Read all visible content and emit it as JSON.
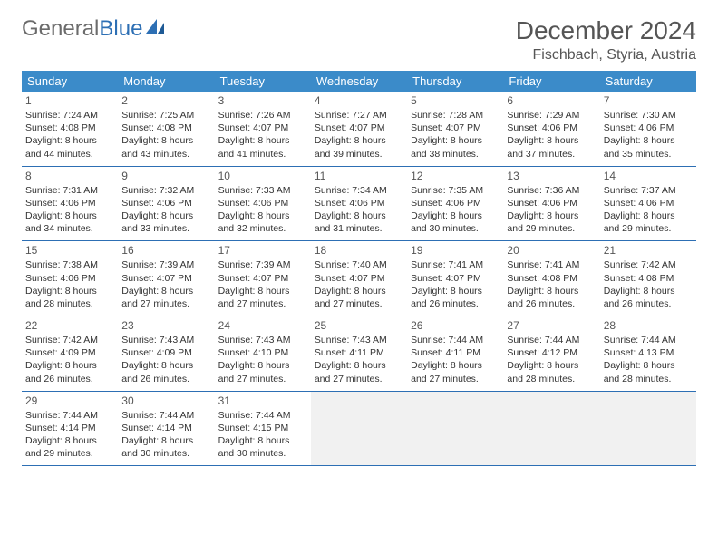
{
  "colors": {
    "header_bg": "#3b8bc9",
    "header_text": "#ffffff",
    "row_divider": "#2d6fb4",
    "logo_gray": "#6b6b6b",
    "logo_blue": "#2d6fb4",
    "title_color": "#555555",
    "body_text": "#333333",
    "empty_cell_bg": "#f1f1f1",
    "page_bg": "#ffffff"
  },
  "logo": {
    "part1": "General",
    "part2": "Blue"
  },
  "title": "December 2024",
  "location": "Fischbach, Styria, Austria",
  "weekdays": [
    "Sunday",
    "Monday",
    "Tuesday",
    "Wednesday",
    "Thursday",
    "Friday",
    "Saturday"
  ],
  "weeks": [
    [
      {
        "n": "1",
        "sr": "Sunrise: 7:24 AM",
        "ss": "Sunset: 4:08 PM",
        "d1": "Daylight: 8 hours",
        "d2": "and 44 minutes."
      },
      {
        "n": "2",
        "sr": "Sunrise: 7:25 AM",
        "ss": "Sunset: 4:08 PM",
        "d1": "Daylight: 8 hours",
        "d2": "and 43 minutes."
      },
      {
        "n": "3",
        "sr": "Sunrise: 7:26 AM",
        "ss": "Sunset: 4:07 PM",
        "d1": "Daylight: 8 hours",
        "d2": "and 41 minutes."
      },
      {
        "n": "4",
        "sr": "Sunrise: 7:27 AM",
        "ss": "Sunset: 4:07 PM",
        "d1": "Daylight: 8 hours",
        "d2": "and 39 minutes."
      },
      {
        "n": "5",
        "sr": "Sunrise: 7:28 AM",
        "ss": "Sunset: 4:07 PM",
        "d1": "Daylight: 8 hours",
        "d2": "and 38 minutes."
      },
      {
        "n": "6",
        "sr": "Sunrise: 7:29 AM",
        "ss": "Sunset: 4:06 PM",
        "d1": "Daylight: 8 hours",
        "d2": "and 37 minutes."
      },
      {
        "n": "7",
        "sr": "Sunrise: 7:30 AM",
        "ss": "Sunset: 4:06 PM",
        "d1": "Daylight: 8 hours",
        "d2": "and 35 minutes."
      }
    ],
    [
      {
        "n": "8",
        "sr": "Sunrise: 7:31 AM",
        "ss": "Sunset: 4:06 PM",
        "d1": "Daylight: 8 hours",
        "d2": "and 34 minutes."
      },
      {
        "n": "9",
        "sr": "Sunrise: 7:32 AM",
        "ss": "Sunset: 4:06 PM",
        "d1": "Daylight: 8 hours",
        "d2": "and 33 minutes."
      },
      {
        "n": "10",
        "sr": "Sunrise: 7:33 AM",
        "ss": "Sunset: 4:06 PM",
        "d1": "Daylight: 8 hours",
        "d2": "and 32 minutes."
      },
      {
        "n": "11",
        "sr": "Sunrise: 7:34 AM",
        "ss": "Sunset: 4:06 PM",
        "d1": "Daylight: 8 hours",
        "d2": "and 31 minutes."
      },
      {
        "n": "12",
        "sr": "Sunrise: 7:35 AM",
        "ss": "Sunset: 4:06 PM",
        "d1": "Daylight: 8 hours",
        "d2": "and 30 minutes."
      },
      {
        "n": "13",
        "sr": "Sunrise: 7:36 AM",
        "ss": "Sunset: 4:06 PM",
        "d1": "Daylight: 8 hours",
        "d2": "and 29 minutes."
      },
      {
        "n": "14",
        "sr": "Sunrise: 7:37 AM",
        "ss": "Sunset: 4:06 PM",
        "d1": "Daylight: 8 hours",
        "d2": "and 29 minutes."
      }
    ],
    [
      {
        "n": "15",
        "sr": "Sunrise: 7:38 AM",
        "ss": "Sunset: 4:06 PM",
        "d1": "Daylight: 8 hours",
        "d2": "and 28 minutes."
      },
      {
        "n": "16",
        "sr": "Sunrise: 7:39 AM",
        "ss": "Sunset: 4:07 PM",
        "d1": "Daylight: 8 hours",
        "d2": "and 27 minutes."
      },
      {
        "n": "17",
        "sr": "Sunrise: 7:39 AM",
        "ss": "Sunset: 4:07 PM",
        "d1": "Daylight: 8 hours",
        "d2": "and 27 minutes."
      },
      {
        "n": "18",
        "sr": "Sunrise: 7:40 AM",
        "ss": "Sunset: 4:07 PM",
        "d1": "Daylight: 8 hours",
        "d2": "and 27 minutes."
      },
      {
        "n": "19",
        "sr": "Sunrise: 7:41 AM",
        "ss": "Sunset: 4:07 PM",
        "d1": "Daylight: 8 hours",
        "d2": "and 26 minutes."
      },
      {
        "n": "20",
        "sr": "Sunrise: 7:41 AM",
        "ss": "Sunset: 4:08 PM",
        "d1": "Daylight: 8 hours",
        "d2": "and 26 minutes."
      },
      {
        "n": "21",
        "sr": "Sunrise: 7:42 AM",
        "ss": "Sunset: 4:08 PM",
        "d1": "Daylight: 8 hours",
        "d2": "and 26 minutes."
      }
    ],
    [
      {
        "n": "22",
        "sr": "Sunrise: 7:42 AM",
        "ss": "Sunset: 4:09 PM",
        "d1": "Daylight: 8 hours",
        "d2": "and 26 minutes."
      },
      {
        "n": "23",
        "sr": "Sunrise: 7:43 AM",
        "ss": "Sunset: 4:09 PM",
        "d1": "Daylight: 8 hours",
        "d2": "and 26 minutes."
      },
      {
        "n": "24",
        "sr": "Sunrise: 7:43 AM",
        "ss": "Sunset: 4:10 PM",
        "d1": "Daylight: 8 hours",
        "d2": "and 27 minutes."
      },
      {
        "n": "25",
        "sr": "Sunrise: 7:43 AM",
        "ss": "Sunset: 4:11 PM",
        "d1": "Daylight: 8 hours",
        "d2": "and 27 minutes."
      },
      {
        "n": "26",
        "sr": "Sunrise: 7:44 AM",
        "ss": "Sunset: 4:11 PM",
        "d1": "Daylight: 8 hours",
        "d2": "and 27 minutes."
      },
      {
        "n": "27",
        "sr": "Sunrise: 7:44 AM",
        "ss": "Sunset: 4:12 PM",
        "d1": "Daylight: 8 hours",
        "d2": "and 28 minutes."
      },
      {
        "n": "28",
        "sr": "Sunrise: 7:44 AM",
        "ss": "Sunset: 4:13 PM",
        "d1": "Daylight: 8 hours",
        "d2": "and 28 minutes."
      }
    ],
    [
      {
        "n": "29",
        "sr": "Sunrise: 7:44 AM",
        "ss": "Sunset: 4:14 PM",
        "d1": "Daylight: 8 hours",
        "d2": "and 29 minutes."
      },
      {
        "n": "30",
        "sr": "Sunrise: 7:44 AM",
        "ss": "Sunset: 4:14 PM",
        "d1": "Daylight: 8 hours",
        "d2": "and 30 minutes."
      },
      {
        "n": "31",
        "sr": "Sunrise: 7:44 AM",
        "ss": "Sunset: 4:15 PM",
        "d1": "Daylight: 8 hours",
        "d2": "and 30 minutes."
      },
      {
        "empty": true
      },
      {
        "empty": true
      },
      {
        "empty": true
      },
      {
        "empty": true
      }
    ]
  ]
}
